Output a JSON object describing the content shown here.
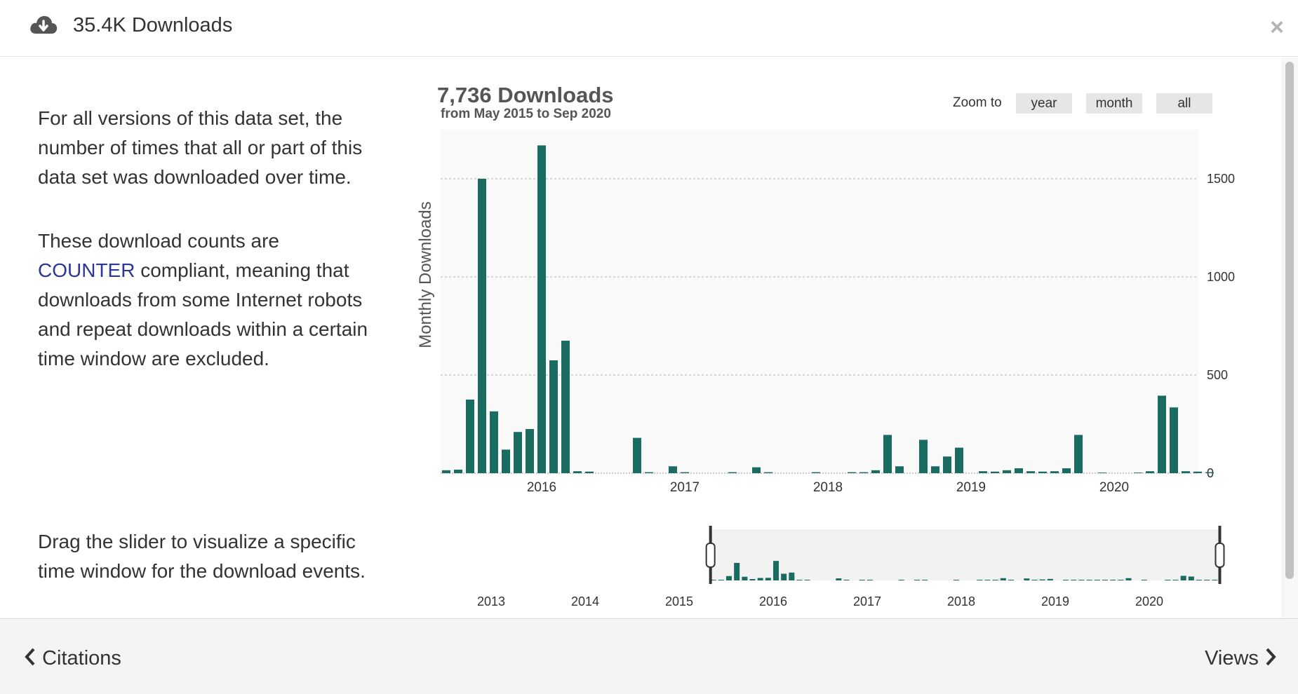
{
  "header": {
    "title": "35.4K Downloads",
    "icon": "cloud-download-icon",
    "close_label": "×"
  },
  "description": {
    "p1": "For all versions of this data set, the number of times that all or part of this data set was downloaded over time.",
    "p2_link": "COUNTER",
    "p2_rest": " compliant, meaning that downloads from some Internet robots and repeat downloads within a certain time window are excluded.",
    "p2_prefix": "These download counts are",
    "p3": "Drag the slider to visualize a specific time window for the download events."
  },
  "zoom": {
    "label": "Zoom to",
    "options": [
      "year",
      "month",
      "all"
    ]
  },
  "footer": {
    "prev_label": "Citations",
    "next_label": "Views"
  },
  "colors": {
    "bar": "#1a6b60",
    "nav_bar_light": "#b6d3cf",
    "plot_bg": "#f9f9f9"
  },
  "chart_data": {
    "type": "bar",
    "title": "7,736 Downloads",
    "subtitle": "from May 2015 to Sep 2020",
    "ylabel": "Monthly Downloads",
    "ylim": [
      0,
      1750
    ],
    "yticks": [
      0,
      500,
      1000,
      1500
    ],
    "y_axis_position": "right",
    "grid": true,
    "x_axis_labels": [
      "2016",
      "2017",
      "2018",
      "2019",
      "2020"
    ],
    "months": [
      "2015-05",
      "2015-06",
      "2015-07",
      "2015-08",
      "2015-09",
      "2015-10",
      "2015-11",
      "2015-12",
      "2016-01",
      "2016-02",
      "2016-03",
      "2016-04",
      "2016-05",
      "2016-06",
      "2016-07",
      "2016-08",
      "2016-09",
      "2016-10",
      "2016-11",
      "2016-12",
      "2017-01",
      "2017-02",
      "2017-03",
      "2017-04",
      "2017-05",
      "2017-06",
      "2017-07",
      "2017-08",
      "2017-09",
      "2017-10",
      "2017-11",
      "2017-12",
      "2018-01",
      "2018-02",
      "2018-03",
      "2018-04",
      "2018-05",
      "2018-06",
      "2018-07",
      "2018-08",
      "2018-09",
      "2018-10",
      "2018-11",
      "2018-12",
      "2019-01",
      "2019-02",
      "2019-03",
      "2019-04",
      "2019-05",
      "2019-06",
      "2019-07",
      "2019-08",
      "2019-09",
      "2019-10",
      "2019-11",
      "2019-12",
      "2020-01",
      "2020-02",
      "2020-03",
      "2020-04",
      "2020-05",
      "2020-06",
      "2020-07",
      "2020-08",
      "2020-09"
    ],
    "values": [
      15,
      18,
      375,
      1500,
      315,
      120,
      210,
      225,
      1670,
      575,
      675,
      10,
      8,
      0,
      0,
      0,
      180,
      5,
      0,
      35,
      5,
      0,
      0,
      0,
      5,
      0,
      30,
      5,
      0,
      0,
      0,
      5,
      0,
      0,
      5,
      5,
      15,
      195,
      35,
      0,
      170,
      35,
      85,
      130,
      0,
      10,
      8,
      15,
      25,
      10,
      8,
      10,
      25,
      195,
      0,
      3,
      0,
      0,
      3,
      10,
      395,
      335,
      10,
      8,
      5
    ],
    "navigator": {
      "x_axis_labels": [
        "2013",
        "2014",
        "2015",
        "2016",
        "2017",
        "2018",
        "2019",
        "2020"
      ],
      "selected_range": [
        "2015-05",
        "2020-09"
      ]
    }
  }
}
